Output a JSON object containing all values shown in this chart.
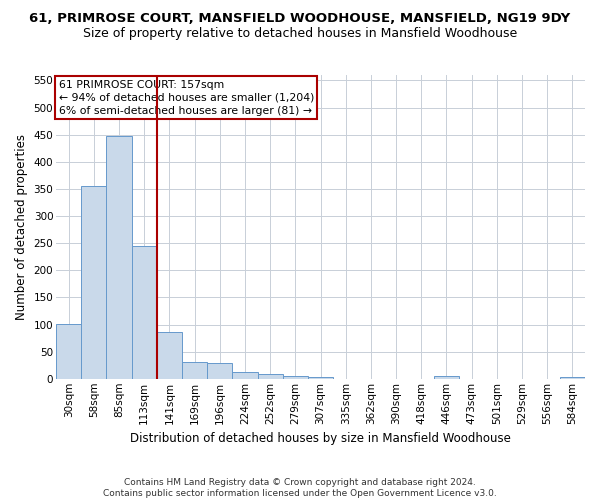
{
  "title": "61, PRIMROSE COURT, MANSFIELD WOODHOUSE, MANSFIELD, NG19 9DY",
  "subtitle": "Size of property relative to detached houses in Mansfield Woodhouse",
  "xlabel": "Distribution of detached houses by size in Mansfield Woodhouse",
  "ylabel": "Number of detached properties",
  "footer_line1": "Contains HM Land Registry data © Crown copyright and database right 2024.",
  "footer_line2": "Contains public sector information licensed under the Open Government Licence v3.0.",
  "annotation_line1": "61 PRIMROSE COURT: 157sqm",
  "annotation_line2": "← 94% of detached houses are smaller (1,204)",
  "annotation_line3": "6% of semi-detached houses are larger (81) →",
  "bar_color": "#c9d9ea",
  "bar_edge_color": "#6699cc",
  "redline_color": "#aa0000",
  "categories": [
    "30sqm",
    "58sqm",
    "85sqm",
    "113sqm",
    "141sqm",
    "169sqm",
    "196sqm",
    "224sqm",
    "252sqm",
    "279sqm",
    "307sqm",
    "335sqm",
    "362sqm",
    "390sqm",
    "418sqm",
    "446sqm",
    "473sqm",
    "501sqm",
    "529sqm",
    "556sqm",
    "584sqm"
  ],
  "values": [
    101,
    355,
    447,
    245,
    86,
    30,
    29,
    13,
    8,
    5,
    4,
    0,
    0,
    0,
    0,
    5,
    0,
    0,
    0,
    0,
    4
  ],
  "redline_index": 3.5,
  "ylim": [
    0,
    560
  ],
  "yticks": [
    0,
    50,
    100,
    150,
    200,
    250,
    300,
    350,
    400,
    450,
    500,
    550
  ],
  "background_color": "#ffffff",
  "grid_color": "#c8cfd8",
  "title_fontsize": 9.5,
  "subtitle_fontsize": 9,
  "axis_label_fontsize": 8.5,
  "tick_fontsize": 7.5,
  "ylabel_fontsize": 8.5,
  "footer_fontsize": 6.5
}
